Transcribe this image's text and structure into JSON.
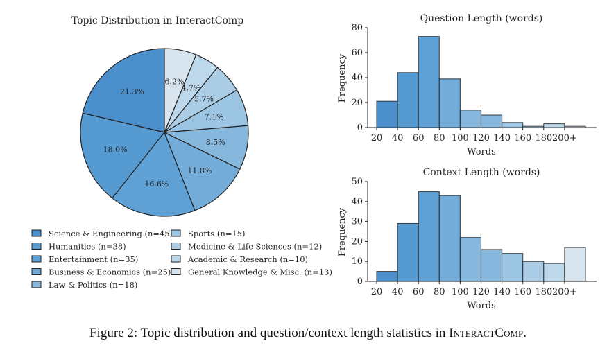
{
  "colors": {
    "palette": [
      "#4a8ecb",
      "#559ad1",
      "#5fa1d4",
      "#73acd8",
      "#86b8dd",
      "#9bc5e2",
      "#aacde5",
      "#bcd8ea",
      "#d8e5ef"
    ],
    "edge": "#222222"
  },
  "chart_data": [
    {
      "type": "pie",
      "title": "Topic Distribution in InteractComp",
      "categories": [
        "Science & Engineering (n=45)",
        "Humanities (n=38)",
        "Entertainment (n=35)",
        "Business & Economics (n=25)",
        "Law & Politics (n=18)",
        "Sports (n=15)",
        "Medicine & Life Sciences (n=12)",
        "Academic & Research (n=10)",
        "General Knowledge & Misc. (n=13)"
      ],
      "values": [
        45,
        38,
        35,
        25,
        18,
        15,
        12,
        10,
        13
      ],
      "labels": [
        "21.3%",
        "18.0%",
        "16.6%",
        "11.8%",
        "8.5%",
        "7.1%",
        "5.7%",
        "4.7%",
        "6.2%"
      ],
      "start": "top",
      "direction": "counterclockwise",
      "legend": "bottom"
    },
    {
      "type": "bar",
      "title": "Question Length (words)",
      "xlabel": "Words",
      "ylabel": "Frequency",
      "xticks": [
        "20",
        "40",
        "60",
        "80",
        "100",
        "120",
        "140",
        "160",
        "180",
        "200+"
      ],
      "values": [
        21,
        44,
        73,
        39,
        14,
        10,
        4,
        1,
        3,
        1
      ],
      "yticks": [
        0,
        20,
        40,
        60,
        80
      ],
      "ylim": [
        0,
        80
      ]
    },
    {
      "type": "bar",
      "title": "Context Length (words)",
      "xlabel": "Words",
      "ylabel": "Frequency",
      "xticks": [
        "20",
        "40",
        "60",
        "80",
        "100",
        "120",
        "140",
        "160",
        "180",
        "200+"
      ],
      "values": [
        5,
        29,
        45,
        43,
        22,
        16,
        14,
        10,
        9,
        17
      ],
      "yticks": [
        0,
        10,
        20,
        30,
        40,
        50
      ],
      "ylim": [
        0,
        50
      ]
    }
  ],
  "caption": {
    "prefix": "Figure 2: Topic distribution and question/context length statistics in ",
    "name": "InteractComp",
    "suffix": "."
  }
}
